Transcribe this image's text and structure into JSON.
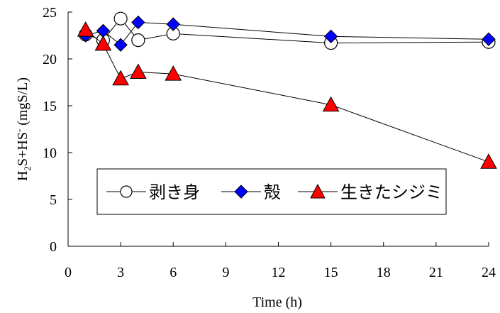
{
  "chart_data": {
    "type": "line",
    "xlabel": "Time (h)",
    "ylabel": {
      "parts": [
        "H",
        "2",
        "S+HS",
        "-",
        " (mgS/L)"
      ]
    },
    "xlim": [
      0,
      24
    ],
    "ylim": [
      0,
      25
    ],
    "xticks": [
      0,
      3,
      6,
      9,
      12,
      15,
      18,
      21,
      24
    ],
    "yticks": [
      0,
      5,
      10,
      15,
      20,
      25
    ],
    "grid": false,
    "legend_position": "lower-left inside plot",
    "series": [
      {
        "name": "剥き身",
        "marker": "circle",
        "fill": "#ffffff",
        "x": [
          1,
          2,
          3,
          4,
          6,
          15,
          24
        ],
        "y": [
          22.6,
          22.0,
          24.3,
          22.0,
          22.7,
          21.7,
          21.8
        ]
      },
      {
        "name": "殻",
        "marker": "diamond",
        "fill": "#0000ff",
        "x": [
          1,
          2,
          3,
          4,
          6,
          15,
          24
        ],
        "y": [
          22.5,
          23.0,
          21.5,
          23.9,
          23.7,
          22.4,
          22.1
        ]
      },
      {
        "name": "生きたシジミ",
        "marker": "triangle",
        "fill": "#ff0000",
        "x": [
          1,
          2,
          3,
          4,
          6,
          15,
          24
        ],
        "y": [
          23.1,
          21.6,
          17.9,
          18.6,
          18.4,
          15.1,
          9.0
        ]
      }
    ]
  }
}
